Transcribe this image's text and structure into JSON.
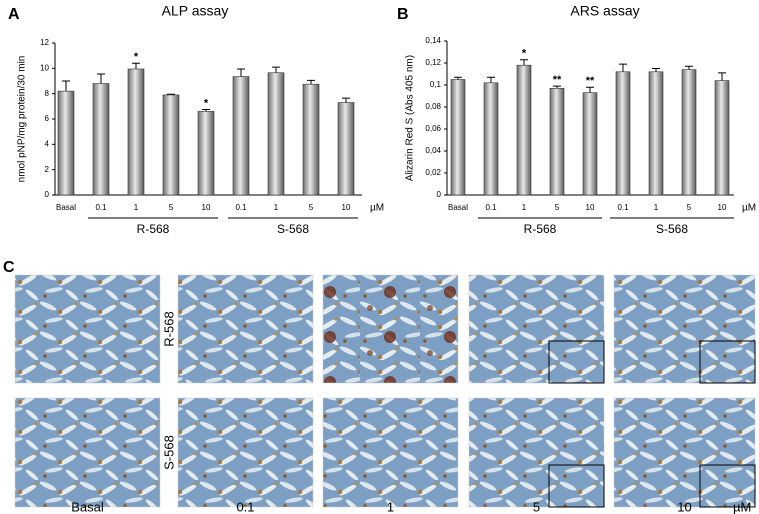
{
  "chart_data": [
    {
      "type": "bar",
      "panel": "A",
      "title": "ALP assay",
      "y_label": "nmol pNP/mg protein/30 min",
      "categories": [
        "Basal",
        "0.1",
        "1",
        "5",
        "10",
        "0.1",
        "1",
        "5",
        "10"
      ],
      "values": [
        8.2,
        8.8,
        9.95,
        7.9,
        6.6,
        9.35,
        9.65,
        8.75,
        7.3
      ],
      "errors": [
        0.8,
        0.75,
        0.45,
        0.05,
        0.15,
        0.6,
        0.45,
        0.3,
        0.35
      ],
      "significance": [
        null,
        null,
        "*",
        null,
        "*",
        null,
        null,
        null,
        null
      ],
      "groups": [
        "R-568",
        "S-568"
      ],
      "unit": "µM",
      "color": "#a6a6a6",
      "ylim": [
        0,
        12
      ],
      "yticks": [
        0,
        2,
        4,
        6,
        8,
        10,
        12
      ]
    },
    {
      "type": "bar",
      "panel": "B",
      "title": "ARS assay",
      "y_label": "Alizarin Red S (Abs 405 nm)",
      "categories": [
        "Basal",
        "0.1",
        "1",
        "5",
        "10",
        "0.1",
        "1",
        "5",
        "10"
      ],
      "values": [
        0.105,
        0.102,
        0.118,
        0.097,
        0.093,
        0.112,
        0.112,
        0.114,
        0.104
      ],
      "errors": [
        0.002,
        0.005,
        0.005,
        0.002,
        0.005,
        0.007,
        0.003,
        0.003,
        0.007
      ],
      "significance": [
        null,
        null,
        "*",
        "**",
        "**",
        null,
        null,
        null,
        null
      ],
      "groups": [
        "R-568",
        "S-568"
      ],
      "unit": "µM",
      "color": "#a6a6a6",
      "ylim": [
        0,
        0.14
      ],
      "yticks": [
        0,
        {
          "value": 0.02,
          "label": "0,02"
        },
        {
          "value": 0.04,
          "label": "0,04"
        },
        {
          "value": 0.06,
          "label": "0,06"
        },
        {
          "value": 0.08,
          "label": "0,08"
        },
        {
          "value": 0.1,
          "label": "0,1"
        },
        {
          "value": 0.12,
          "label": "0,12"
        },
        {
          "value": 0.14,
          "label": "0,14"
        }
      ]
    }
  ],
  "panel_c": {
    "panel": "C",
    "row_labels": [
      "R-568",
      "S-568"
    ],
    "column_labels": [
      "Basal",
      "0.1",
      "1",
      "5",
      "10"
    ],
    "unit": "µM"
  }
}
